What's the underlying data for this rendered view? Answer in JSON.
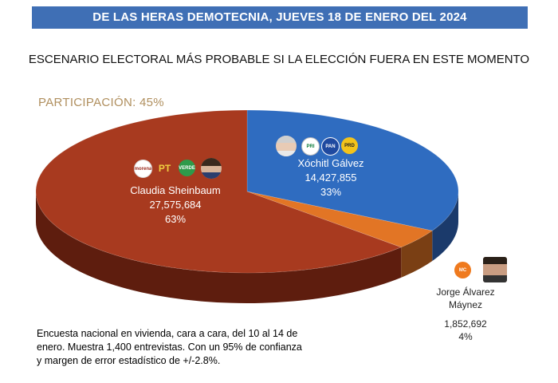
{
  "header": {
    "banner": "DE LAS HERAS DEMOTECNIA, JUEVES 18 DE ENERO DEL 2024"
  },
  "title": "ESCENARIO ELECTORAL MÁS PROBABLE SI LA ELECCIÓN FUERA EN ESTE MOMENTO",
  "participation": "PARTICIPACIÓN: 45%",
  "chart_data": {
    "type": "pie",
    "title": "ESCENARIO ELECTORAL MÁS PROBABLE SI LA ELECCIÓN FUERA EN ESTE MOMENTO",
    "slices": [
      {
        "name": "Xóchitl Gálvez",
        "votes": "14,427,855",
        "percent": "33%",
        "value": 33,
        "color": "#2f6cc0",
        "side_color": "#1b3a6b",
        "parties": [
          "PRI",
          "PAN",
          "PRD"
        ]
      },
      {
        "name": "Jorge Álvarez Máynez",
        "votes": "1,852,692",
        "percent": "4%",
        "value": 4,
        "color": "#e27525",
        "side_color": "#7a3f14",
        "parties": [
          "MC"
        ]
      },
      {
        "name": "Claudia Sheinbaum",
        "votes": "27,575,684",
        "percent": "63%",
        "value": 63,
        "color": "#a83a1f",
        "side_color": "#5e1d0e",
        "parties": [
          "morena",
          "PT",
          "VERDE"
        ]
      }
    ]
  },
  "labels": {
    "claudia": {
      "name": "Claudia Sheinbaum",
      "votes": "27,575,684",
      "percent": "63%"
    },
    "xochitl": {
      "name": "Xóchitl Gálvez",
      "votes": "14,427,855",
      "percent": "33%"
    },
    "jorge": {
      "name_line1": "Jorge Álvarez",
      "name_line2": "Máynez",
      "votes": "1,852,692",
      "percent": "4%"
    }
  },
  "party_logos": {
    "morena": "morena",
    "pt": "PT",
    "verde": "VERDE",
    "pri": "PRI",
    "pan": "PAN",
    "prd": "PRD",
    "mc": "MC"
  },
  "footnote": "Encuesta nacional en vivienda, cara a cara, del 10 al 14 de enero. Muestra 1,400 entrevistas. Con un 95% de confianza y margen de error estadístico de +/-2.8%."
}
